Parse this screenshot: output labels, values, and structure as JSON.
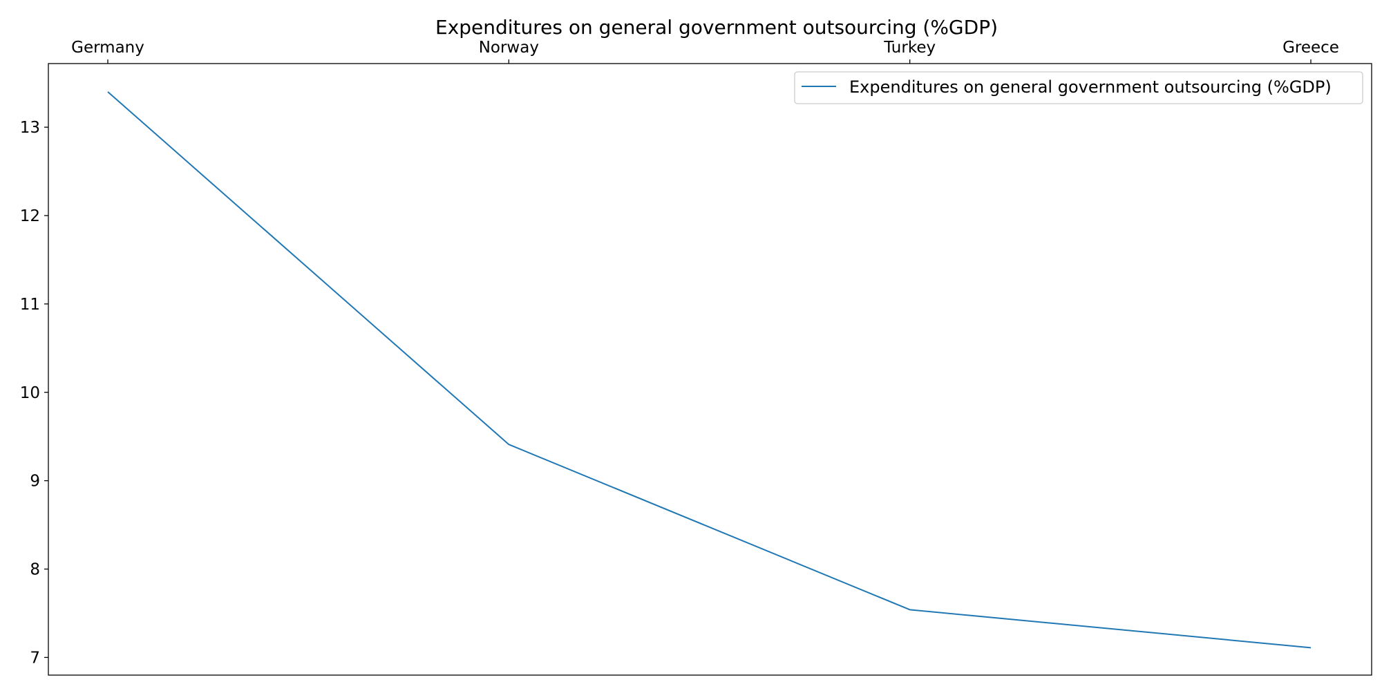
{
  "chart_data": {
    "type": "line",
    "title": "Expenditures on general government outsourcing (%GDP)",
    "xlabel": "",
    "ylabel": "",
    "categories": [
      "Germany",
      "Norway",
      "Turkey",
      "Greece"
    ],
    "x_axis_position": "top",
    "series": [
      {
        "name": "Expenditures on general government outsourcing (%GDP)",
        "values": [
          13.4,
          9.41,
          7.54,
          7.11
        ],
        "color": "#1f77b4"
      }
    ],
    "ylim": [
      6.8,
      13.72
    ],
    "yticks": [
      7,
      8,
      9,
      10,
      11,
      12,
      13
    ],
    "grid": false,
    "legend": "top-right"
  }
}
